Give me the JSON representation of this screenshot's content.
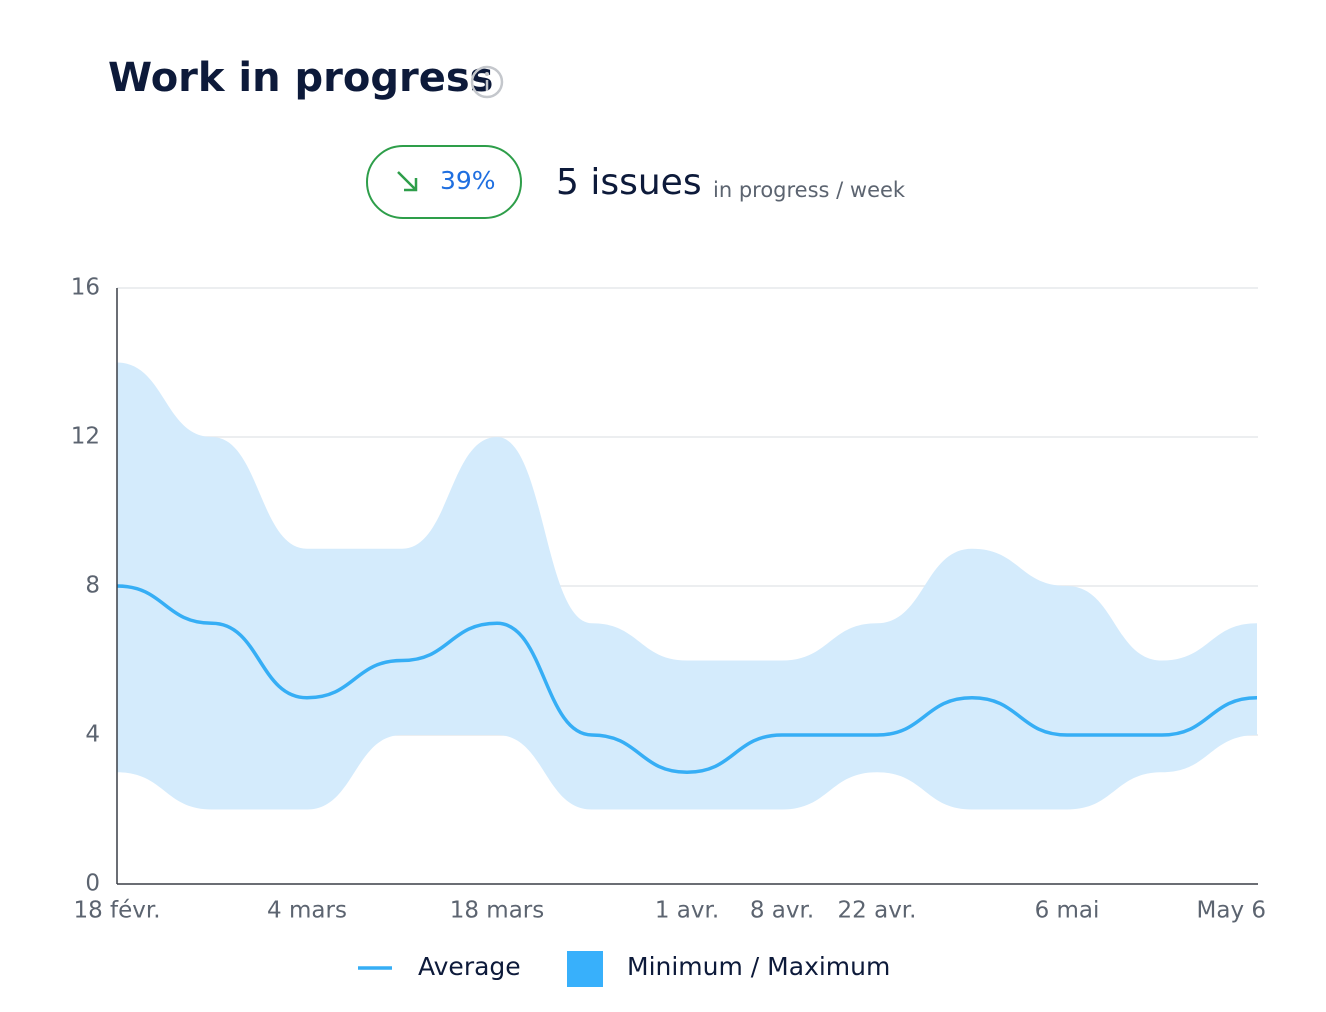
{
  "header": {
    "title": "Work in progress",
    "badge": "39%",
    "headline": "5 issues",
    "headline_unit": "in progress / week"
  },
  "chart_data": {
    "type": "range_line",
    "categories": [
      "18 févr.",
      null,
      "4 mars",
      null,
      "18 mars",
      null,
      "1 avr.",
      "8 avr.",
      "22 avr.",
      null,
      "6 mai",
      null,
      "May 6"
    ],
    "series": [
      {
        "name": "Average",
        "color": "#36aef5",
        "values": [
          8,
          7,
          5,
          6,
          7,
          4,
          3,
          4,
          4,
          5,
          4,
          4,
          5
        ]
      },
      {
        "name": "Minimum / Maximum",
        "color": "#38b0fb",
        "fill": "#d4ebfc",
        "high": [
          14,
          12,
          9,
          9,
          12,
          7,
          6,
          6,
          7,
          9,
          8,
          6,
          7
        ],
        "low": [
          3,
          2,
          2,
          4,
          4,
          2,
          2,
          2,
          3,
          2,
          2,
          3,
          4
        ]
      }
    ],
    "ylim": [
      0,
      16
    ],
    "yticks": [
      0,
      4,
      8,
      12,
      16
    ],
    "grid": true
  }
}
